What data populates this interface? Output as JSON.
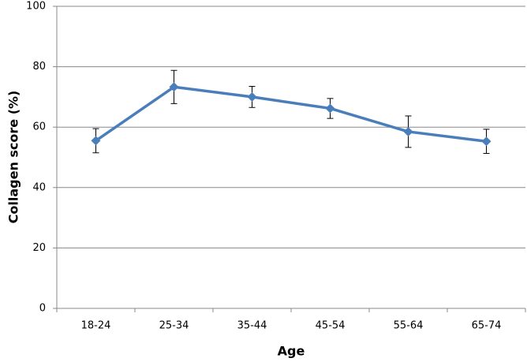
{
  "chart_data": {
    "type": "line",
    "xlabel": "Age",
    "ylabel": "Collagen score (%)",
    "categories": [
      "18-24",
      "25-34",
      "35-44",
      "45-54",
      "55-64",
      "65-74"
    ],
    "series": [
      {
        "color": "#4a7ebb",
        "values": [
          55.5,
          73.3,
          70,
          66.2,
          58.5,
          55.3
        ],
        "errors": [
          4,
          5.5,
          3.5,
          3.3,
          5.2,
          4
        ]
      }
    ],
    "ylim": [
      0,
      100
    ],
    "yticks": [
      0,
      20,
      40,
      60,
      80,
      100
    ],
    "grid": true
  }
}
